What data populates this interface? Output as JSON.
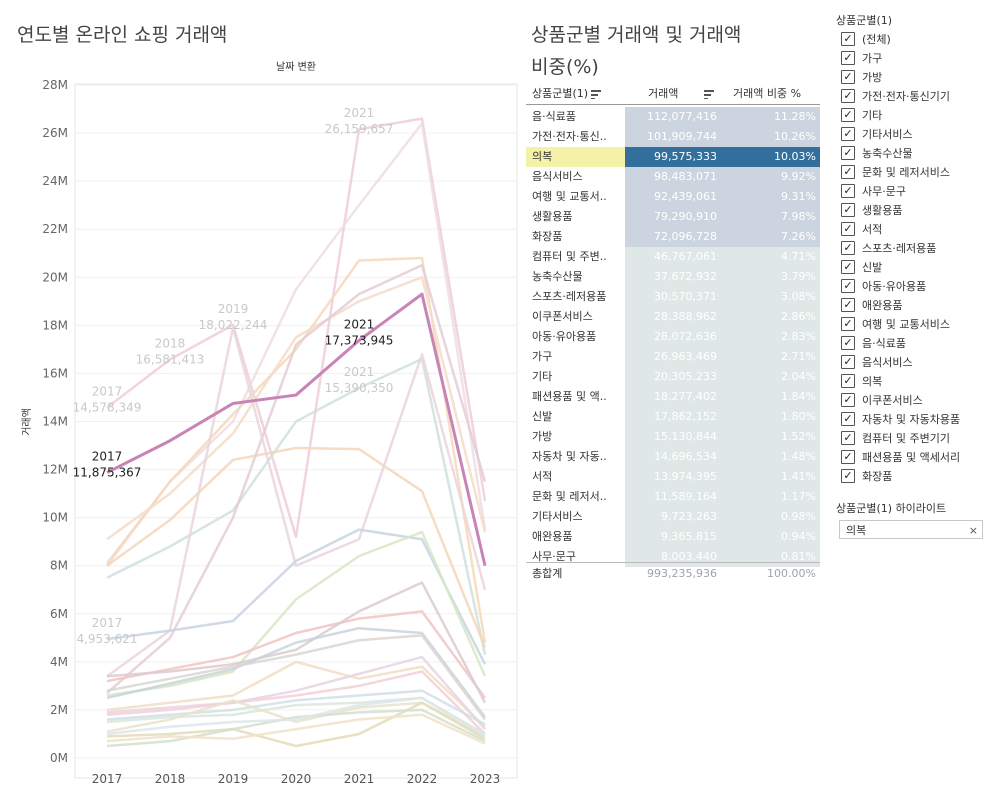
{
  "titles": {
    "left": "연도별 온라인 쇼핑 거래액",
    "mid_line1": "상품군별 거래액 및 거래액",
    "mid_line2": "비중(%)"
  },
  "chart_data": {
    "type": "line",
    "title": "연도별 온라인 쇼핑 거래액",
    "xlabel": "날짜 변환",
    "ylabel": "거래액",
    "x": [
      2017,
      2018,
      2019,
      2020,
      2021,
      2022,
      2023
    ],
    "ylim": [
      0,
      28
    ],
    "y_unit": "M",
    "yticks": [
      "0M",
      "2M",
      "4M",
      "6M",
      "8M",
      "10M",
      "12M",
      "14M",
      "16M",
      "18M",
      "20M",
      "22M",
      "24M",
      "26M",
      "28M"
    ],
    "highlight_series": "의복",
    "highlight_color": "#c884b6",
    "series": [
      {
        "values": [
          11.875,
          13.2,
          14.75,
          15.1,
          17.37,
          19.3,
          8.0
        ],
        "color": "#c884b6",
        "hl": true
      },
      {
        "values": [
          14.58,
          16.58,
          18.02,
          9.2,
          26.16,
          26.6,
          10.7
        ],
        "color": "#eecdd8"
      },
      {
        "values": [
          8.0,
          11.5,
          14.0,
          19.5,
          23.0,
          26.4,
          9.5
        ],
        "color": "#efdde2"
      },
      {
        "values": [
          8.1,
          11.5,
          14.3,
          17.0,
          20.7,
          20.8,
          4.8
        ],
        "color": "#f6d8b8"
      },
      {
        "values": [
          9.1,
          11.0,
          13.5,
          17.5,
          19.0,
          20.0,
          9.4
        ],
        "color": "#f4dcc8"
      },
      {
        "values": [
          7.5,
          8.8,
          10.3,
          14.0,
          15.39,
          16.6,
          4.3
        ],
        "color": "#cfe0dc"
      },
      {
        "values": [
          8.0,
          9.9,
          12.4,
          12.9,
          12.85,
          11.1,
          4.6
        ],
        "color": "#f5d6b8"
      },
      {
        "values": [
          2.7,
          5.0,
          10.0,
          17.2,
          19.3,
          20.5,
          11.5
        ],
        "color": "#e4ccd6"
      },
      {
        "values": [
          3.4,
          5.3,
          17.9,
          8.0,
          9.1,
          16.8,
          7.0
        ],
        "color": "#ead5dc"
      },
      {
        "values": [
          4.95,
          5.3,
          5.7,
          8.2,
          9.5,
          9.1,
          3.9
        ],
        "color": "#c8d3e2"
      },
      {
        "values": [
          2.6,
          3.0,
          3.6,
          6.6,
          8.4,
          9.4,
          3.4
        ],
        "color": "#d6e6c4"
      },
      {
        "values": [
          3.2,
          3.7,
          4.2,
          5.2,
          5.8,
          6.1,
          2.5
        ],
        "color": "#f1c4c4"
      },
      {
        "values": [
          3.4,
          3.6,
          3.9,
          4.5,
          6.1,
          7.3,
          2.3
        ],
        "color": "#dccad0"
      },
      {
        "values": [
          2.5,
          3.1,
          3.7,
          4.8,
          5.4,
          5.2,
          1.7
        ],
        "color": "#c9d2dc"
      },
      {
        "values": [
          2.8,
          3.3,
          3.8,
          4.3,
          4.9,
          5.1,
          1.6
        ],
        "color": "#d9d6d2"
      },
      {
        "values": [
          2.0,
          2.3,
          2.6,
          4.0,
          3.3,
          3.8,
          1.3
        ],
        "color": "#f1ddc4"
      },
      {
        "values": [
          1.9,
          2.1,
          2.3,
          2.8,
          3.5,
          4.2,
          1.2
        ],
        "color": "#e7d4e2"
      },
      {
        "values": [
          1.8,
          2.0,
          2.3,
          2.6,
          3.0,
          3.6,
          1.0
        ],
        "color": "#f2cfd6"
      },
      {
        "values": [
          1.6,
          1.8,
          2.0,
          2.4,
          2.6,
          2.8,
          1.4
        ],
        "color": "#cfe0e8"
      },
      {
        "values": [
          1.5,
          1.7,
          1.8,
          2.2,
          2.3,
          2.5,
          1.0
        ],
        "color": "#d9e6dc"
      },
      {
        "values": [
          1.1,
          1.6,
          2.4,
          1.5,
          2.1,
          2.3,
          0.9
        ],
        "color": "#e9e3c8"
      },
      {
        "values": [
          0.9,
          1.0,
          1.2,
          0.5,
          1.0,
          2.3,
          0.8
        ],
        "color": "#e3dcb8"
      },
      {
        "values": [
          0.5,
          0.7,
          1.2,
          1.7,
          1.9,
          2.0,
          0.7
        ],
        "color": "#d2e0cc"
      },
      {
        "values": [
          0.7,
          0.9,
          0.8,
          1.2,
          1.6,
          1.8,
          0.6
        ],
        "color": "#f0e2c8"
      },
      {
        "values": [
          1.0,
          1.3,
          1.5,
          1.6,
          2.2,
          2.5,
          0.9
        ],
        "color": "#dde6ea"
      }
    ],
    "annotations": [
      {
        "x": 2017,
        "v": 11.875,
        "year": "2017",
        "value": "11,875,367",
        "hl": true
      },
      {
        "x": 2021,
        "v": 17.37,
        "year": "2021",
        "value": "17,373,945",
        "hl": true
      },
      {
        "x": 2017,
        "v": 14.58,
        "year": "2017",
        "value": "14,578,349"
      },
      {
        "x": 2018,
        "v": 16.58,
        "year": "2018",
        "value": "16,581,413"
      },
      {
        "x": 2019,
        "v": 18.02,
        "year": "2019",
        "value": "18,022,244"
      },
      {
        "x": 2021,
        "v": 26.16,
        "year": "2021",
        "value": "26,159,657"
      },
      {
        "x": 2021,
        "v": 15.39,
        "year": "2021",
        "value": "15,390,350"
      },
      {
        "x": 2017,
        "v": 4.95,
        "year": "2017",
        "value": "4,953,621"
      }
    ]
  },
  "table": {
    "headers": {
      "category": "상품군별(1)",
      "amount": "거래액",
      "share": "거래액 비중 %"
    },
    "highlight": "의복",
    "rows": [
      {
        "name": "음·식료품",
        "amount": "112,077,416",
        "share": "11.28%"
      },
      {
        "name": "가전·전자·통신..",
        "amount": "101,909,744",
        "share": "10.26%"
      },
      {
        "name": "의복",
        "amount": "99,575,333",
        "share": "10.03%"
      },
      {
        "name": "음식서비스",
        "amount": "98,483,071",
        "share": "9.92%"
      },
      {
        "name": "여행 및 교통서..",
        "amount": "92,439,061",
        "share": "9.31%"
      },
      {
        "name": "생활용품",
        "amount": "79,290,910",
        "share": "7.98%"
      },
      {
        "name": "화장품",
        "amount": "72,096,728",
        "share": "7.26%"
      },
      {
        "name": "컴퓨터 및 주변..",
        "amount": "46,767,061",
        "share": "4.71%"
      },
      {
        "name": "농축수산물",
        "amount": "37,672,932",
        "share": "3.79%"
      },
      {
        "name": "스포츠·레저용품",
        "amount": "30,570,371",
        "share": "3.08%"
      },
      {
        "name": "이쿠폰서비스",
        "amount": "28,388,962",
        "share": "2.86%"
      },
      {
        "name": "아동·유아용품",
        "amount": "28,072,636",
        "share": "2.83%"
      },
      {
        "name": "가구",
        "amount": "26,963,469",
        "share": "2.71%"
      },
      {
        "name": "기타",
        "amount": "20,305,233",
        "share": "2.04%"
      },
      {
        "name": "패션용품 및 액..",
        "amount": "18,277,402",
        "share": "1.84%"
      },
      {
        "name": "신발",
        "amount": "17,862,152",
        "share": "1.80%"
      },
      {
        "name": "가방",
        "amount": "15,130,844",
        "share": "1.52%"
      },
      {
        "name": "자동차 및 자동..",
        "amount": "14,696,534",
        "share": "1.48%"
      },
      {
        "name": "서적",
        "amount": "13,974,395",
        "share": "1.41%"
      },
      {
        "name": "문화 및 레저서..",
        "amount": "11,589,164",
        "share": "1.17%"
      },
      {
        "name": "기타서비스",
        "amount": "9,723,263",
        "share": "0.98%"
      },
      {
        "name": "애완용품",
        "amount": "9,365,815",
        "share": "0.94%"
      },
      {
        "name": "사무·문구",
        "amount": "8,003,440",
        "share": "0.81%"
      }
    ],
    "total": {
      "name": "총합계",
      "amount": "993,235,936",
      "share": "100.00%"
    }
  },
  "filter": {
    "title": "상품군별(1)",
    "items": [
      "(전체)",
      "가구",
      "가방",
      "가전·전자·통신기기",
      "기타",
      "기타서비스",
      "농축수산물",
      "문화 및 레저서비스",
      "사무·문구",
      "생활용품",
      "서적",
      "스포츠·레저용품",
      "신발",
      "아동·유아용품",
      "애완용품",
      "여행 및 교통서비스",
      "음·식료품",
      "음식서비스",
      "의복",
      "이쿠폰서비스",
      "자동차 및 자동차용품",
      "컴퓨터 및 주변기기",
      "패션용품 및 액세서리",
      "화장품"
    ],
    "check_glyph": "✓"
  },
  "highlighter": {
    "title": "상품군별(1) 하이라이트",
    "value": "의복",
    "clear": "×"
  },
  "colors": {
    "highlight_row": "#f3f2a6",
    "bar_top": "#ccd5df",
    "bar_bottom": "#dfe8e6",
    "selected_cell": "#336f9c"
  }
}
